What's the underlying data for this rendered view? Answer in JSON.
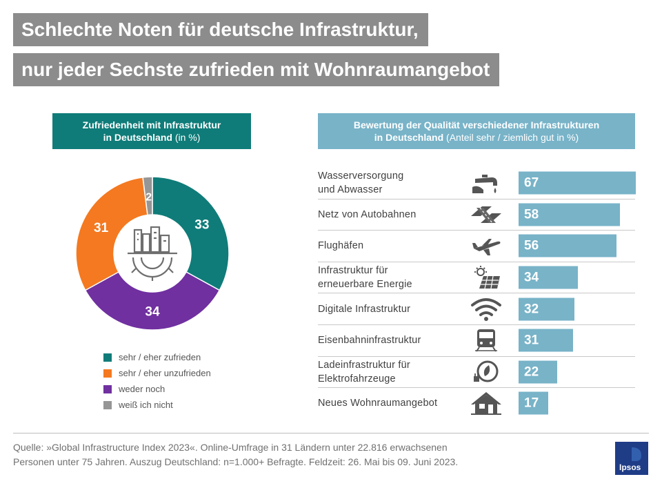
{
  "title": {
    "line1": "Schlechte Noten für deutsche Infrastruktur,",
    "line2": "nur jeder Sechste zufrieden mit Wohnraumangebot"
  },
  "left_header": {
    "bold1": "Zufriedenheit mit Infrastruktur",
    "bold2": "in Deutschland",
    "normal": " (in %)"
  },
  "right_header": {
    "bold1": "Bewertung der Qualität  verschiedener Infrastrukturen",
    "bold2": "in Deutschland",
    "normal": " (Anteil sehr / ziemlich gut in %)"
  },
  "chart_data": [
    {
      "type": "pie",
      "title": "Zufriedenheit mit Infrastruktur in Deutschland (in %)",
      "categories": [
        "sehr / eher zufrieden",
        "weder noch",
        "sehr / eher unzufrieden",
        "weiß ich nicht"
      ],
      "values": [
        33,
        34,
        31,
        2
      ],
      "colors": [
        "#0f7c79",
        "#7030a0",
        "#f47920",
        "#969696"
      ],
      "legend": [
        {
          "label": "sehr / eher zufrieden",
          "color": "#0f7c79"
        },
        {
          "label": "sehr / eher unzufrieden",
          "color": "#f47920"
        },
        {
          "label": "weder noch",
          "color": "#7030a0"
        },
        {
          "label": "weiß ich nicht",
          "color": "#969696"
        }
      ]
    },
    {
      "type": "bar",
      "orientation": "horizontal",
      "title": "Bewertung der Qualität verschiedener Infrastrukturen in Deutschland (Anteil sehr / ziemlich gut in %)",
      "categories": [
        "Wasserversorgung und Abwasser",
        "Netz von Autobahnen",
        "Flughäfen",
        "Infrastruktur für erneuerbare Energie",
        "Digitale Infrastruktur",
        "Eisenbahninfrastruktur",
        "Ladeinfrastruktur für Elektrofahrzeuge",
        "Neues Wohnraumangebot"
      ],
      "values": [
        67,
        58,
        56,
        34,
        32,
        31,
        22,
        17
      ],
      "xlim": [
        0,
        67
      ],
      "color": "#78b3c8"
    }
  ],
  "rows": [
    {
      "line1": "Wasserversorgung",
      "line2": "und Abwasser",
      "icon": "water-tap-icon",
      "value": "67"
    },
    {
      "line1": "Netz von Autobahnen",
      "line2": "",
      "icon": "highway-icon",
      "value": "58"
    },
    {
      "line1": "Flughäfen",
      "line2": "",
      "icon": "airplane-icon",
      "value": "56"
    },
    {
      "line1": "Infrastruktur  für",
      "line2": "erneuerbare  Energie",
      "icon": "solar-panel-icon",
      "value": "34"
    },
    {
      "line1": "Digitale  Infrastruktur",
      "line2": "",
      "icon": "wifi-icon",
      "value": "32"
    },
    {
      "line1": "Eisenbahninfrastruktur",
      "line2": "",
      "icon": "train-icon",
      "value": "31"
    },
    {
      "line1": "Ladeinfrastruktur  für",
      "line2": "Elektrofahrzeuge",
      "icon": "ev-charging-icon",
      "value": "22"
    },
    {
      "line1": "Neues  Wohnraumangebot",
      "line2": "",
      "icon": "house-icon",
      "value": "17"
    }
  ],
  "source": {
    "line1": "Quelle:  »Global Infrastructure  Index 2023«. Online-Umfrage  in 31 Ländern unter  22.816 erwachsenen",
    "line2": "Personen unter 75 Jahren. Auszug Deutschland:  n=1.000+ Befragte.  Feldzeit: 26. Mai bis 09. Juni 2023."
  },
  "logo": {
    "text": "Ipsos",
    "color": "#1f3c87"
  }
}
